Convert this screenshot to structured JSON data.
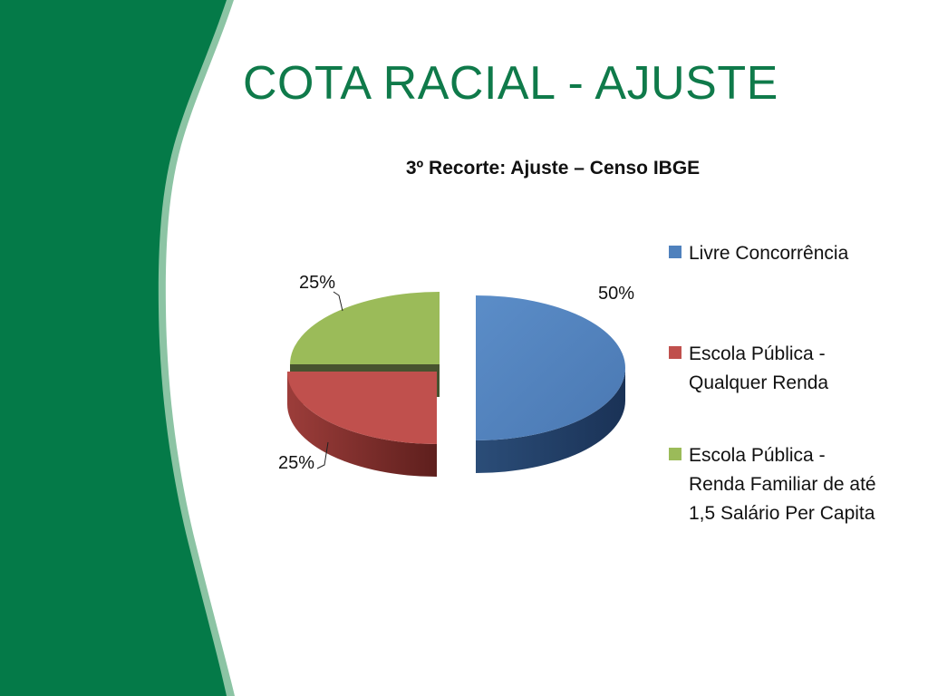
{
  "slide": {
    "title": "COTA RACIAL - AJUSTE"
  },
  "colors": {
    "band_dark": "#047a48",
    "band_light": "#8cc4a4",
    "title": "#0f7a4a"
  },
  "chart_data": {
    "type": "pie",
    "title": "3º Recorte: Ajuste – Censo IBGE",
    "categories": [
      "Livre Concorrência",
      "Escola Pública - Qualquer Renda",
      "Escola Pública - Renda Familiar de até 1,5 Salário Per Capita"
    ],
    "values": [
      50,
      25,
      25
    ],
    "data_labels": [
      "50%",
      "25%",
      "25%"
    ],
    "colors": [
      "#4f81bd",
      "#c0504d",
      "#9bbb59"
    ],
    "legend_position": "right",
    "style": "3d-exploded"
  }
}
